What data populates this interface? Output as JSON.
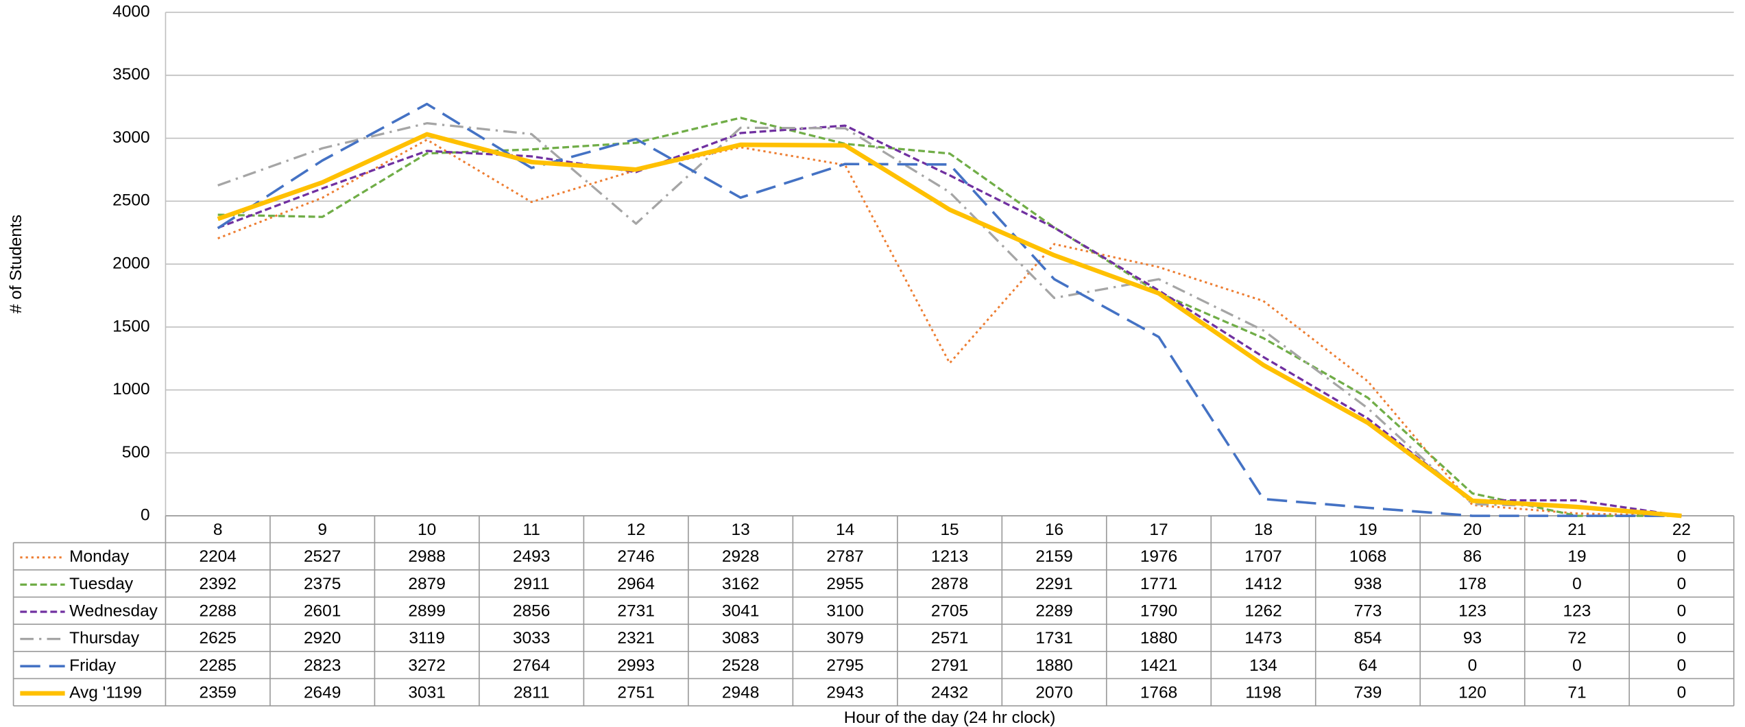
{
  "chart_data": {
    "type": "line",
    "x_label": "Hour of the day (24 hr clock)",
    "y_label": "# of Students",
    "categories": [
      "8",
      "9",
      "10",
      "11",
      "12",
      "13",
      "14",
      "15",
      "16",
      "17",
      "18",
      "19",
      "20",
      "21",
      "22"
    ],
    "ylim": [
      0,
      4000
    ],
    "yticks": [
      0,
      500,
      1000,
      1500,
      2000,
      2500,
      3000,
      3500,
      4000
    ],
    "grid": true,
    "series": [
      {
        "name": "Monday",
        "color": "#ED7D31",
        "line_style": "dotted",
        "values": [
          2204,
          2527,
          2988,
          2493,
          2746,
          2928,
          2787,
          1213,
          2159,
          1976,
          1707,
          1068,
          86,
          19,
          0
        ]
      },
      {
        "name": "Tuesday",
        "color": "#70AD47",
        "line_style": "dashed",
        "values": [
          2392,
          2375,
          2879,
          2911,
          2964,
          3162,
          2955,
          2878,
          2291,
          1771,
          1412,
          938,
          178,
          0,
          0
        ]
      },
      {
        "name": "Wednesday",
        "color": "#7030A0",
        "line_style": "dashed",
        "values": [
          2288,
          2601,
          2899,
          2856,
          2731,
          3041,
          3100,
          2705,
          2289,
          1790,
          1262,
          773,
          123,
          123,
          0
        ]
      },
      {
        "name": "Thursday",
        "color": "#A5A5A5",
        "line_style": "dash-dot",
        "values": [
          2625,
          2920,
          3119,
          3033,
          2321,
          3083,
          3079,
          2571,
          1731,
          1880,
          1473,
          854,
          93,
          72,
          0
        ]
      },
      {
        "name": "Friday",
        "color": "#4472C4",
        "line_style": "long-dash",
        "values": [
          2285,
          2823,
          3272,
          2764,
          2993,
          2528,
          2795,
          2791,
          1880,
          1421,
          134,
          64,
          0,
          0,
          0
        ]
      },
      {
        "name": "Avg '1199",
        "color": "#FFC000",
        "line_style": "solid-thick",
        "values": [
          2359,
          2649,
          3031,
          2811,
          2751,
          2948,
          2943,
          2432,
          2070,
          1768,
          1198,
          739,
          120,
          71,
          0
        ]
      }
    ]
  }
}
